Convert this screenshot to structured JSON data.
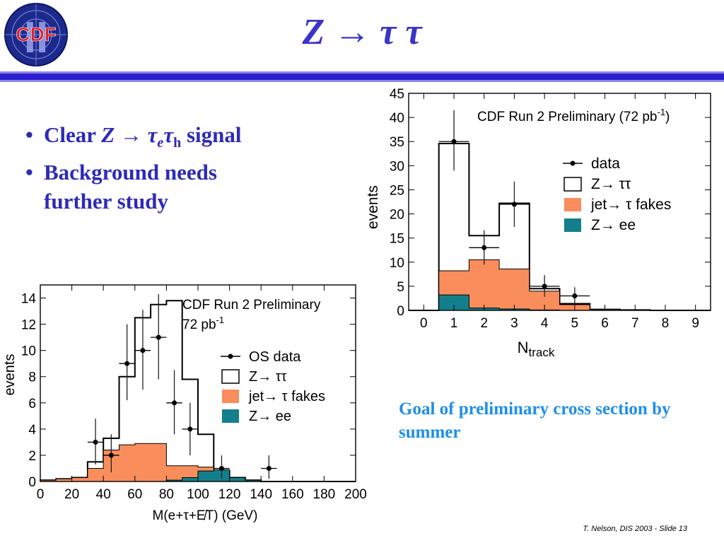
{
  "logo": {
    "text": "CDF",
    "numeral": "II"
  },
  "slide_title": "Z → τ τ",
  "bullets": [
    {
      "prefix": "Clear ",
      "formula": "Z → τ",
      "sub1": "e",
      "mid": "τ",
      "sub2": "h",
      "suffix": "  signal"
    },
    {
      "line1": "Background needs",
      "line2": "further study"
    }
  ],
  "goal_text": "Goal of preliminary cross section by summer",
  "footer": "T. Nelson,  DIS 2003 - Slide 13",
  "colors": {
    "title": "#3a35c8",
    "rule": "#2c1fd0",
    "bullets": "#2e2ab8",
    "goal": "#1f8fe6",
    "fake": "#f98d5c",
    "zee": "#137f8d"
  },
  "chart_data": [
    {
      "type": "histogram",
      "title": "CDF Run 2 Preliminary",
      "subtitle": "72 pb⁻¹",
      "xlabel": "M(e+τ+E̸T)  (GeV)",
      "ylabel": "events",
      "xlim": [
        0,
        200
      ],
      "ylim": [
        0,
        15
      ],
      "xticks": [
        0,
        20,
        40,
        60,
        80,
        100,
        120,
        140,
        160,
        180,
        200
      ],
      "yticks": [
        0,
        2,
        4,
        6,
        8,
        10,
        12,
        14
      ],
      "legend": [
        "OS data",
        "Z→ ττ",
        "jet→ τ fakes",
        "Z→ ee"
      ],
      "bin_edges": [
        0,
        10,
        20,
        30,
        40,
        50,
        60,
        70,
        80,
        90,
        100,
        110,
        120,
        130,
        140,
        150,
        160,
        170,
        180,
        190,
        200
      ],
      "series": [
        {
          "name": "Z→ ττ",
          "values": [
            0.1,
            0.2,
            0.3,
            1.5,
            3.3,
            8.0,
            12.5,
            13.5,
            13.8,
            7.8,
            3.6,
            0.8,
            0.3,
            0.1,
            0,
            0,
            0,
            0,
            0,
            0
          ]
        },
        {
          "name": "jet→ τ fakes",
          "values": [
            0.1,
            0.2,
            0.3,
            1.0,
            2.4,
            2.8,
            2.9,
            2.9,
            1.2,
            1.2,
            1.1,
            0.6,
            0.3,
            0.1,
            0,
            0,
            0,
            0,
            0,
            0
          ]
        },
        {
          "name": "Z→ ee",
          "values": [
            0,
            0,
            0,
            0,
            0,
            0,
            0,
            0,
            0.1,
            0.3,
            0.8,
            0.9,
            0.3,
            0.1,
            0,
            0,
            0,
            0,
            0,
            0
          ]
        }
      ],
      "data_points": [
        {
          "x": 35,
          "y": 3,
          "ylo": 1.3,
          "yhi": 4.8
        },
        {
          "x": 45,
          "y": 2,
          "ylo": 0.7,
          "yhi": 3.6
        },
        {
          "x": 55,
          "y": 9,
          "ylo": 6.2,
          "yhi": 12.0
        },
        {
          "x": 65,
          "y": 10,
          "ylo": 7.0,
          "yhi": 13.1
        },
        {
          "x": 75,
          "y": 11,
          "ylo": 7.8,
          "yhi": 14.3
        },
        {
          "x": 85,
          "y": 6,
          "ylo": 3.6,
          "yhi": 8.5
        },
        {
          "x": 95,
          "y": 4,
          "ylo": 2.0,
          "yhi": 6.0
        },
        {
          "x": 115,
          "y": 1,
          "ylo": 0.2,
          "yhi": 2.0
        },
        {
          "x": 145,
          "y": 1,
          "ylo": 0.2,
          "yhi": 2.0
        }
      ]
    },
    {
      "type": "histogram",
      "title": "CDF Run 2 Preliminary  (72 pb⁻¹)",
      "xlabel": "N_track",
      "xlabel_main": "N",
      "xlabel_sub": "track",
      "ylabel": "events",
      "xlim": [
        -0.5,
        9.5
      ],
      "ylim": [
        0,
        45
      ],
      "xticks": [
        0,
        1,
        2,
        3,
        4,
        5,
        6,
        7,
        8,
        9
      ],
      "yticks": [
        0,
        5,
        10,
        15,
        20,
        25,
        30,
        35,
        40,
        45
      ],
      "legend": [
        "data",
        "Z→ ττ",
        "jet→ τ fakes",
        "Z→ ee"
      ],
      "bin_edges": [
        -0.5,
        0.5,
        1.5,
        2.5,
        3.5,
        4.5,
        5.5,
        6.5,
        7.5,
        8.5,
        9.5
      ],
      "series": [
        {
          "name": "Z→ ττ",
          "values": [
            0,
            34.6,
            15.5,
            22.2,
            4.5,
            1.4,
            0.2,
            0.1,
            0,
            0
          ]
        },
        {
          "name": "jet→ τ fakes",
          "values": [
            0,
            8.2,
            10.5,
            8.6,
            4.0,
            1.2,
            0.2,
            0.1,
            0,
            0
          ]
        },
        {
          "name": "Z→ ee",
          "values": [
            0,
            3.2,
            0.5,
            0.3,
            0.1,
            0,
            0,
            0,
            0,
            0
          ]
        }
      ],
      "data_points": [
        {
          "x": 1,
          "y": 35,
          "ylo": 29,
          "yhi": 41.5
        },
        {
          "x": 2,
          "y": 13,
          "ylo": 9.5,
          "yhi": 16.6
        },
        {
          "x": 3,
          "y": 22,
          "ylo": 17.3,
          "yhi": 26.7
        },
        {
          "x": 4,
          "y": 5,
          "ylo": 2.8,
          "yhi": 7.3
        },
        {
          "x": 5,
          "y": 3,
          "ylo": 1.3,
          "yhi": 4.8
        }
      ]
    }
  ]
}
